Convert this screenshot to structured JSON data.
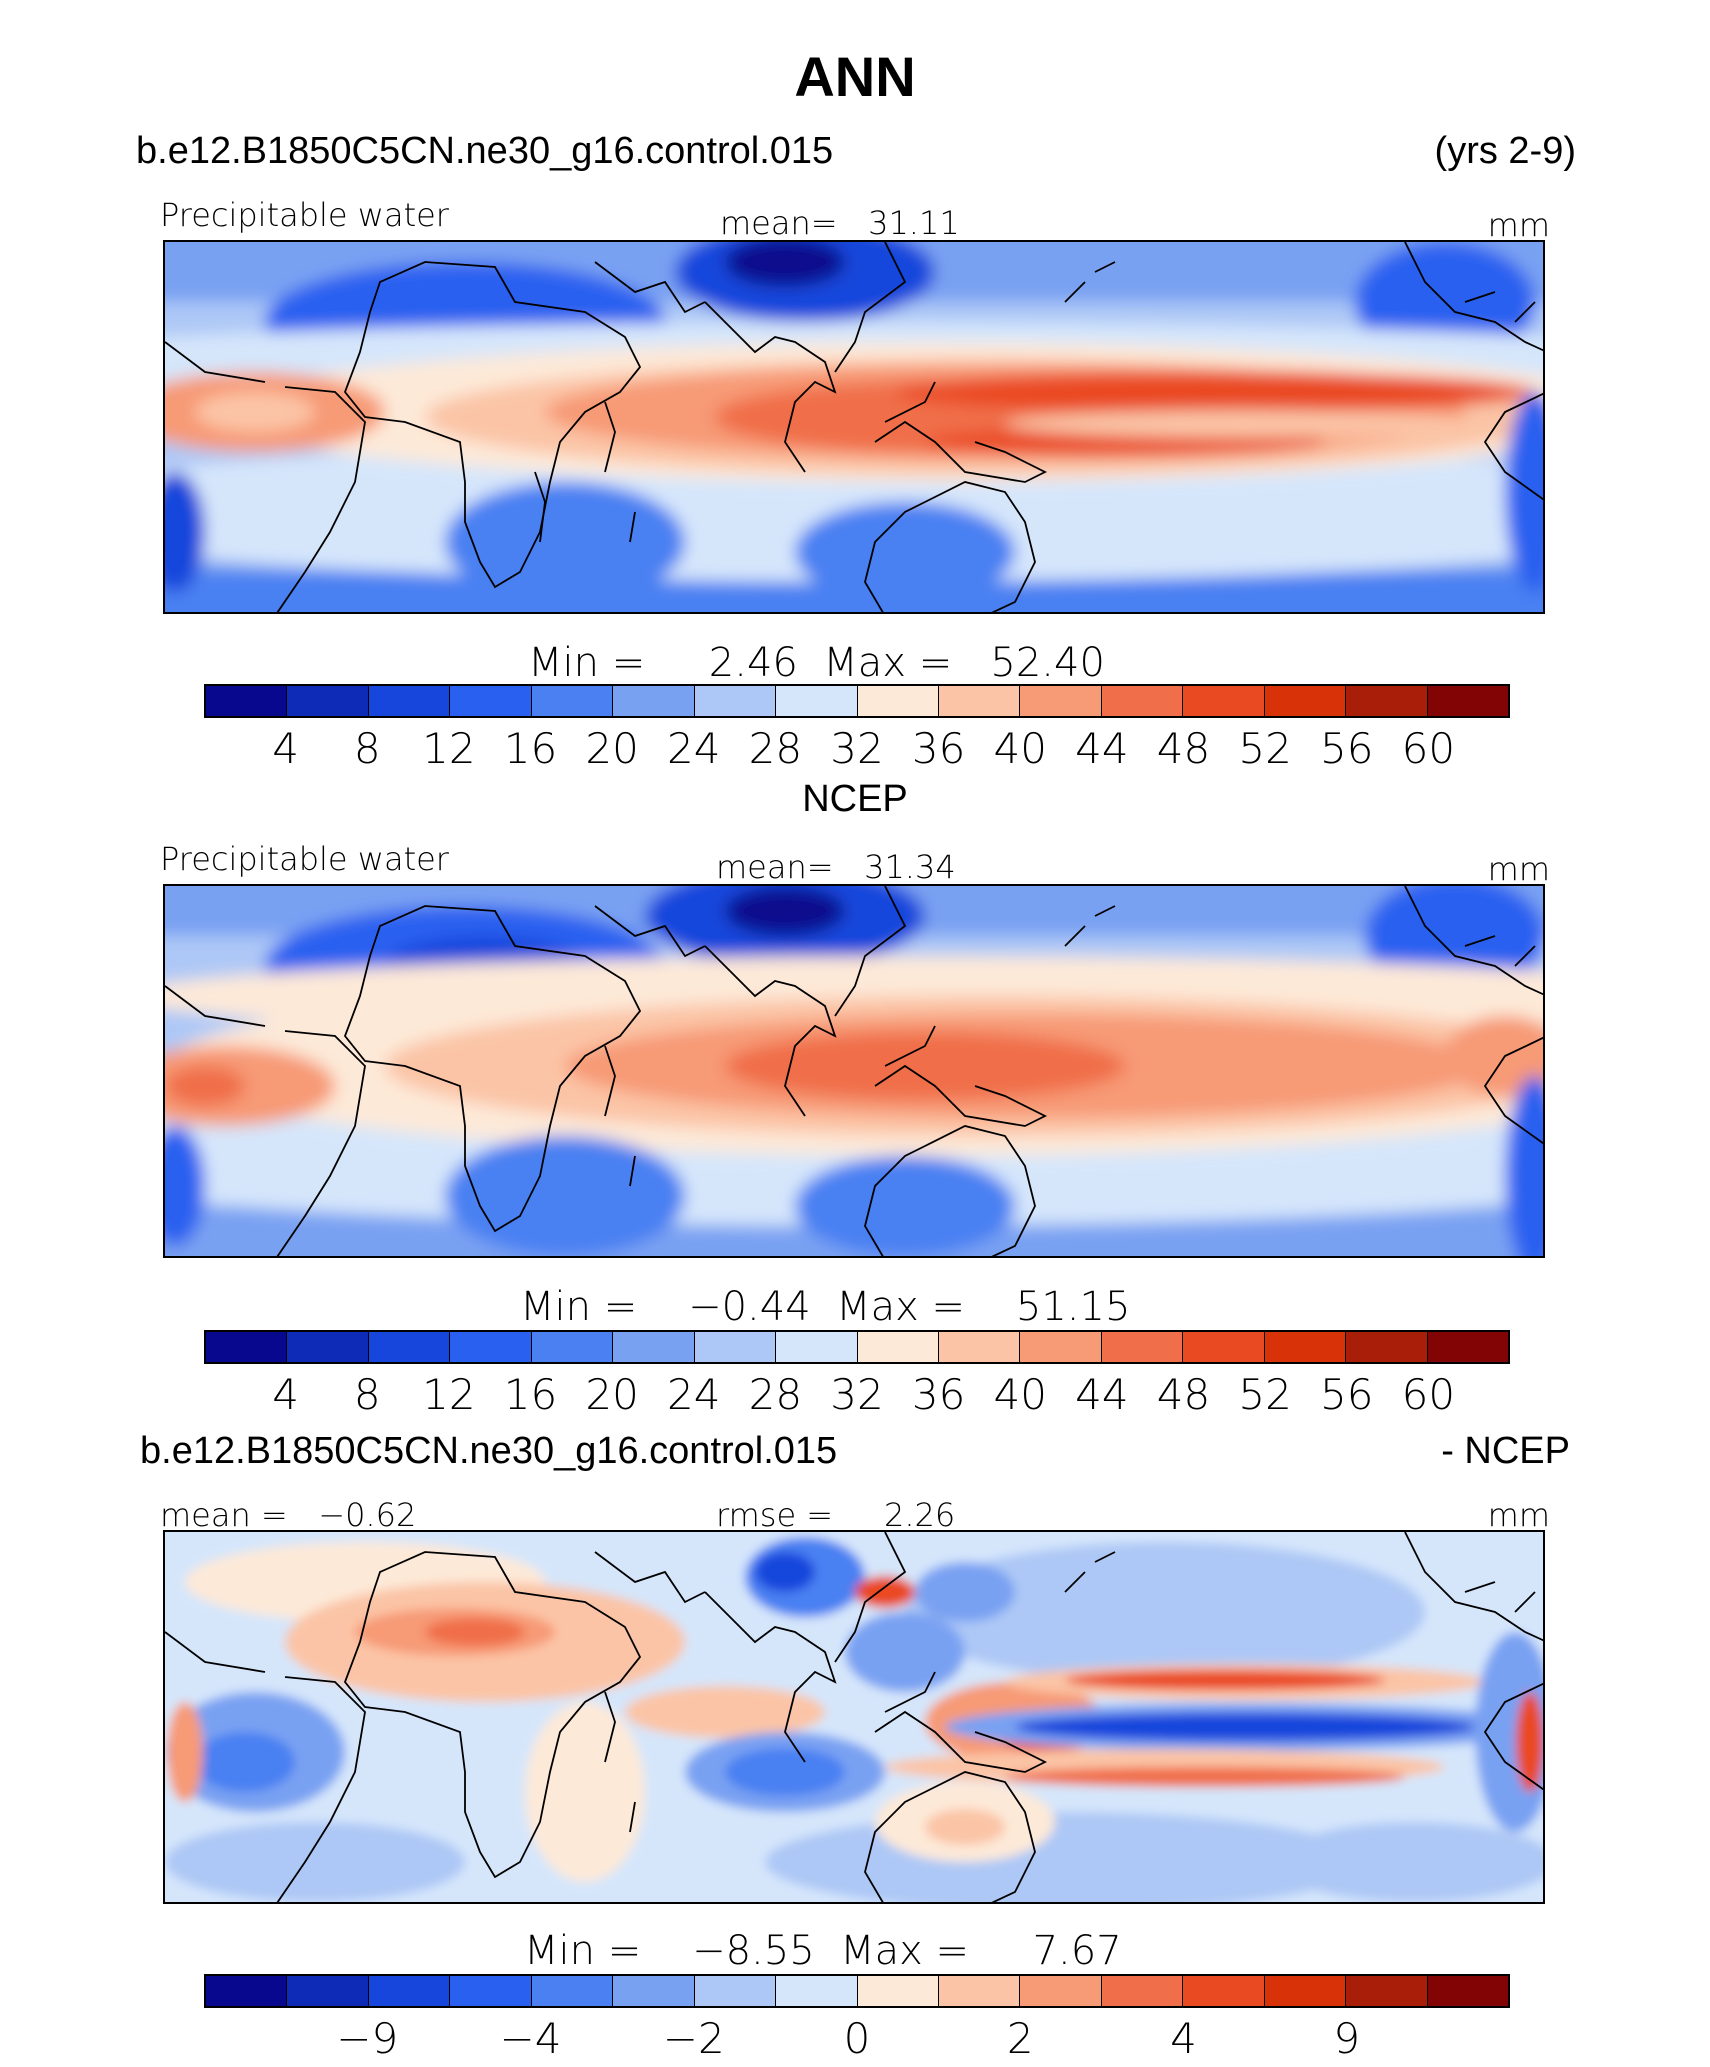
{
  "title": "ANN",
  "colors": [
    "#08088e",
    "#0d2bb7",
    "#1646dc",
    "#2a60f0",
    "#4a80f2",
    "#79a1f2",
    "#adc8f6",
    "#d5e6fb",
    "#fde9d8",
    "#fbc4a6",
    "#f79a76",
    "#f06e4a",
    "#ea4a22",
    "#d83208",
    "#a91e08",
    "#820404"
  ],
  "panel1": {
    "case": "b.e12.B1850C5CN.ne30_g16.control.015",
    "years": "(yrs 2-9)",
    "variable": "Precipitable water",
    "mean_label": "mean=",
    "mean": "31.11",
    "units": "mm",
    "min_label": "Min  =",
    "min": "2.46",
    "max_label": "Max  =",
    "max": "52.40",
    "ticks": [
      "4",
      "8",
      "12",
      "16",
      "20",
      "24",
      "28",
      "32",
      "36",
      "40",
      "44",
      "48",
      "52",
      "56",
      "60"
    ]
  },
  "panel2": {
    "subtitle": "NCEP",
    "variable": "Precipitable water",
    "mean_label": "mean=",
    "mean": "31.34",
    "units": "mm",
    "min_label": "Min  =",
    "min": "−0.44",
    "max_label": "Max  =",
    "max": "51.15",
    "ticks": [
      "4",
      "8",
      "12",
      "16",
      "20",
      "24",
      "28",
      "32",
      "36",
      "40",
      "44",
      "48",
      "52",
      "56",
      "60"
    ]
  },
  "panel3": {
    "case": "b.e12.B1850C5CN.ne30_g16.control.015",
    "minus": "- NCEP",
    "mean_label": "mean =",
    "mean": "−0.62",
    "rmse_label": "rmse =",
    "rmse": "2.26",
    "units": "mm",
    "min_label": "Min  =",
    "min": "−8.55",
    "max_label": "Max  =",
    "max": "7.67",
    "ticks": [
      {
        "label": "−9",
        "boundary": 2
      },
      {
        "label": "−4",
        "boundary": 4
      },
      {
        "label": "−2",
        "boundary": 6
      },
      {
        "label": "0",
        "boundary": 8
      },
      {
        "label": "2",
        "boundary": 10
      },
      {
        "label": "4",
        "boundary": 12
      },
      {
        "label": "9",
        "boundary": 14
      }
    ]
  }
}
